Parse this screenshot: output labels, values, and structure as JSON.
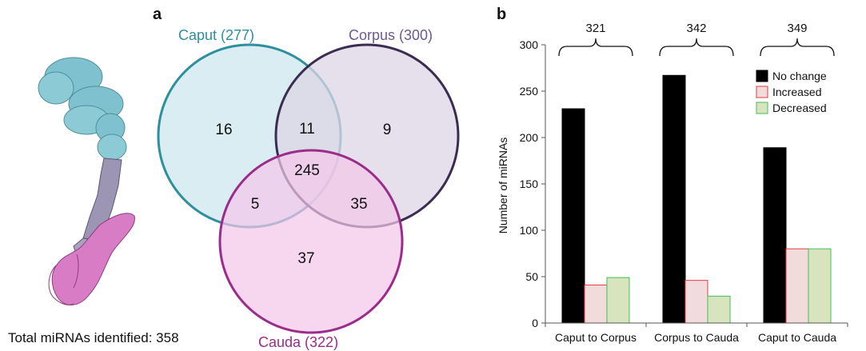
{
  "panels": {
    "a_label": "a",
    "b_label": "b"
  },
  "illustration": {
    "caption": "Total miRNAs identified: 358",
    "colors": {
      "caput": "#7fc1cf",
      "corpus": "#9c95b3",
      "cauda": "#d97cc6"
    }
  },
  "venn": {
    "sets": [
      {
        "id": "caput",
        "label": "Caput (277)",
        "stroke": "#2e8f9e",
        "fill": "#cfe9f0",
        "text_color": "#2e8f9e"
      },
      {
        "id": "corpus",
        "label": "Corpus (300)",
        "stroke": "#3b2c52",
        "fill": "#dcd5e6",
        "text_color": "#6b5a8c"
      },
      {
        "id": "cauda",
        "label": "Cauda (322)",
        "stroke": "#9b2c8a",
        "fill": "#f3c6ea",
        "text_color": "#9b2c8a"
      }
    ],
    "regions": {
      "caput_only": "16",
      "corpus_only": "9",
      "cauda_only": "37",
      "caput_corpus": "11",
      "caput_cauda": "5",
      "corpus_cauda": "35",
      "all": "245"
    }
  },
  "chart_data": {
    "type": "bar",
    "categories": [
      "Caput to Corpus",
      "Corpus to Cauda",
      "Caput to Cauda"
    ],
    "totals": [
      "321",
      "342",
      "349"
    ],
    "series": [
      {
        "name": "No change",
        "values": [
          231,
          267,
          189
        ],
        "fill": "#000000",
        "stroke": "#000000"
      },
      {
        "name": "Increased",
        "values": [
          41,
          46,
          80
        ],
        "fill": "#f2dcdb",
        "stroke": "#e8393f"
      },
      {
        "name": "Decreased",
        "values": [
          49,
          29,
          80
        ],
        "fill": "#d7e4bd",
        "stroke": "#3fbf56"
      }
    ],
    "ylabel": "Number of miRNAs",
    "xlabel": "",
    "ylim": [
      0,
      300
    ],
    "yticks": [
      "0",
      "50",
      "100",
      "150",
      "200",
      "250",
      "300"
    ],
    "grid": false,
    "legend": "top-right"
  }
}
